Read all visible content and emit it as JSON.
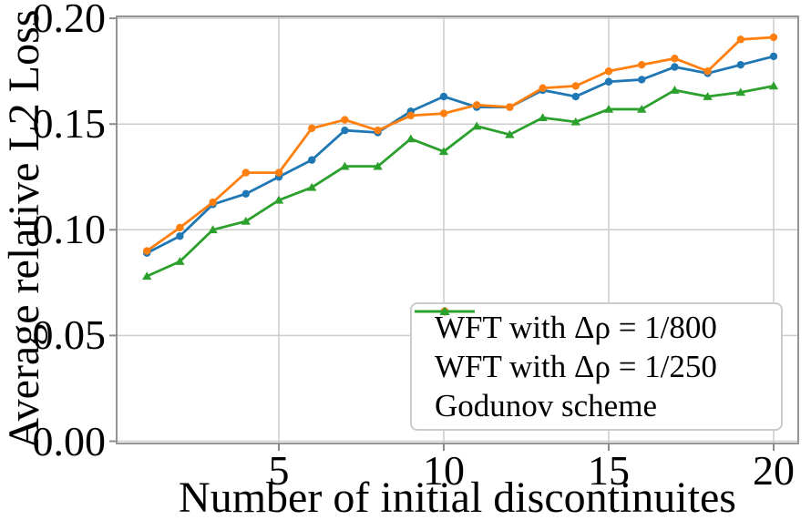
{
  "figure": {
    "background": "#ffffff"
  },
  "chart_data": {
    "type": "line",
    "title": "",
    "xlabel": "Number of initial discontinuites",
    "ylabel": "Average relative L2 Loss",
    "x": [
      1,
      2,
      3,
      4,
      5,
      6,
      7,
      8,
      9,
      10,
      11,
      12,
      13,
      14,
      15,
      16,
      17,
      18,
      19,
      20
    ],
    "series": [
      {
        "name": "WFT with Δρ = 1/800",
        "color": "#1f77b4",
        "marker": "circle",
        "values": [
          0.089,
          0.097,
          0.112,
          0.117,
          0.125,
          0.133,
          0.147,
          0.146,
          0.156,
          0.163,
          0.158,
          0.158,
          0.166,
          0.163,
          0.17,
          0.171,
          0.177,
          0.174,
          0.178,
          0.182
        ]
      },
      {
        "name": "WFT with Δρ = 1/250",
        "color": "#ff7f0e",
        "marker": "circle",
        "values": [
          0.09,
          0.101,
          0.113,
          0.127,
          0.127,
          0.148,
          0.152,
          0.147,
          0.154,
          0.155,
          0.159,
          0.158,
          0.167,
          0.168,
          0.175,
          0.178,
          0.181,
          0.175,
          0.19,
          0.191
        ]
      },
      {
        "name": "Godunov scheme",
        "color": "#2ca02c",
        "marker": "triangle",
        "values": [
          0.078,
          0.085,
          0.1,
          0.104,
          0.114,
          0.12,
          0.13,
          0.13,
          0.143,
          0.137,
          0.149,
          0.145,
          0.153,
          0.151,
          0.157,
          0.157,
          0.166,
          0.163,
          0.165,
          0.168
        ]
      }
    ],
    "xticks": [
      5,
      10,
      15,
      20
    ],
    "yticks": [
      0.0,
      0.05,
      0.1,
      0.15,
      0.2
    ],
    "ytick_labels": [
      "0.00",
      "0.05",
      "0.10",
      "0.15",
      "0.20"
    ],
    "xlim": [
      0.08,
      20.75
    ],
    "ylim": [
      0.0,
      0.202
    ],
    "grid": true,
    "legend_position": "lower right",
    "grid_color": "#cccccc",
    "spine_color": "#949494",
    "tick_color": "#8c8c8c"
  }
}
